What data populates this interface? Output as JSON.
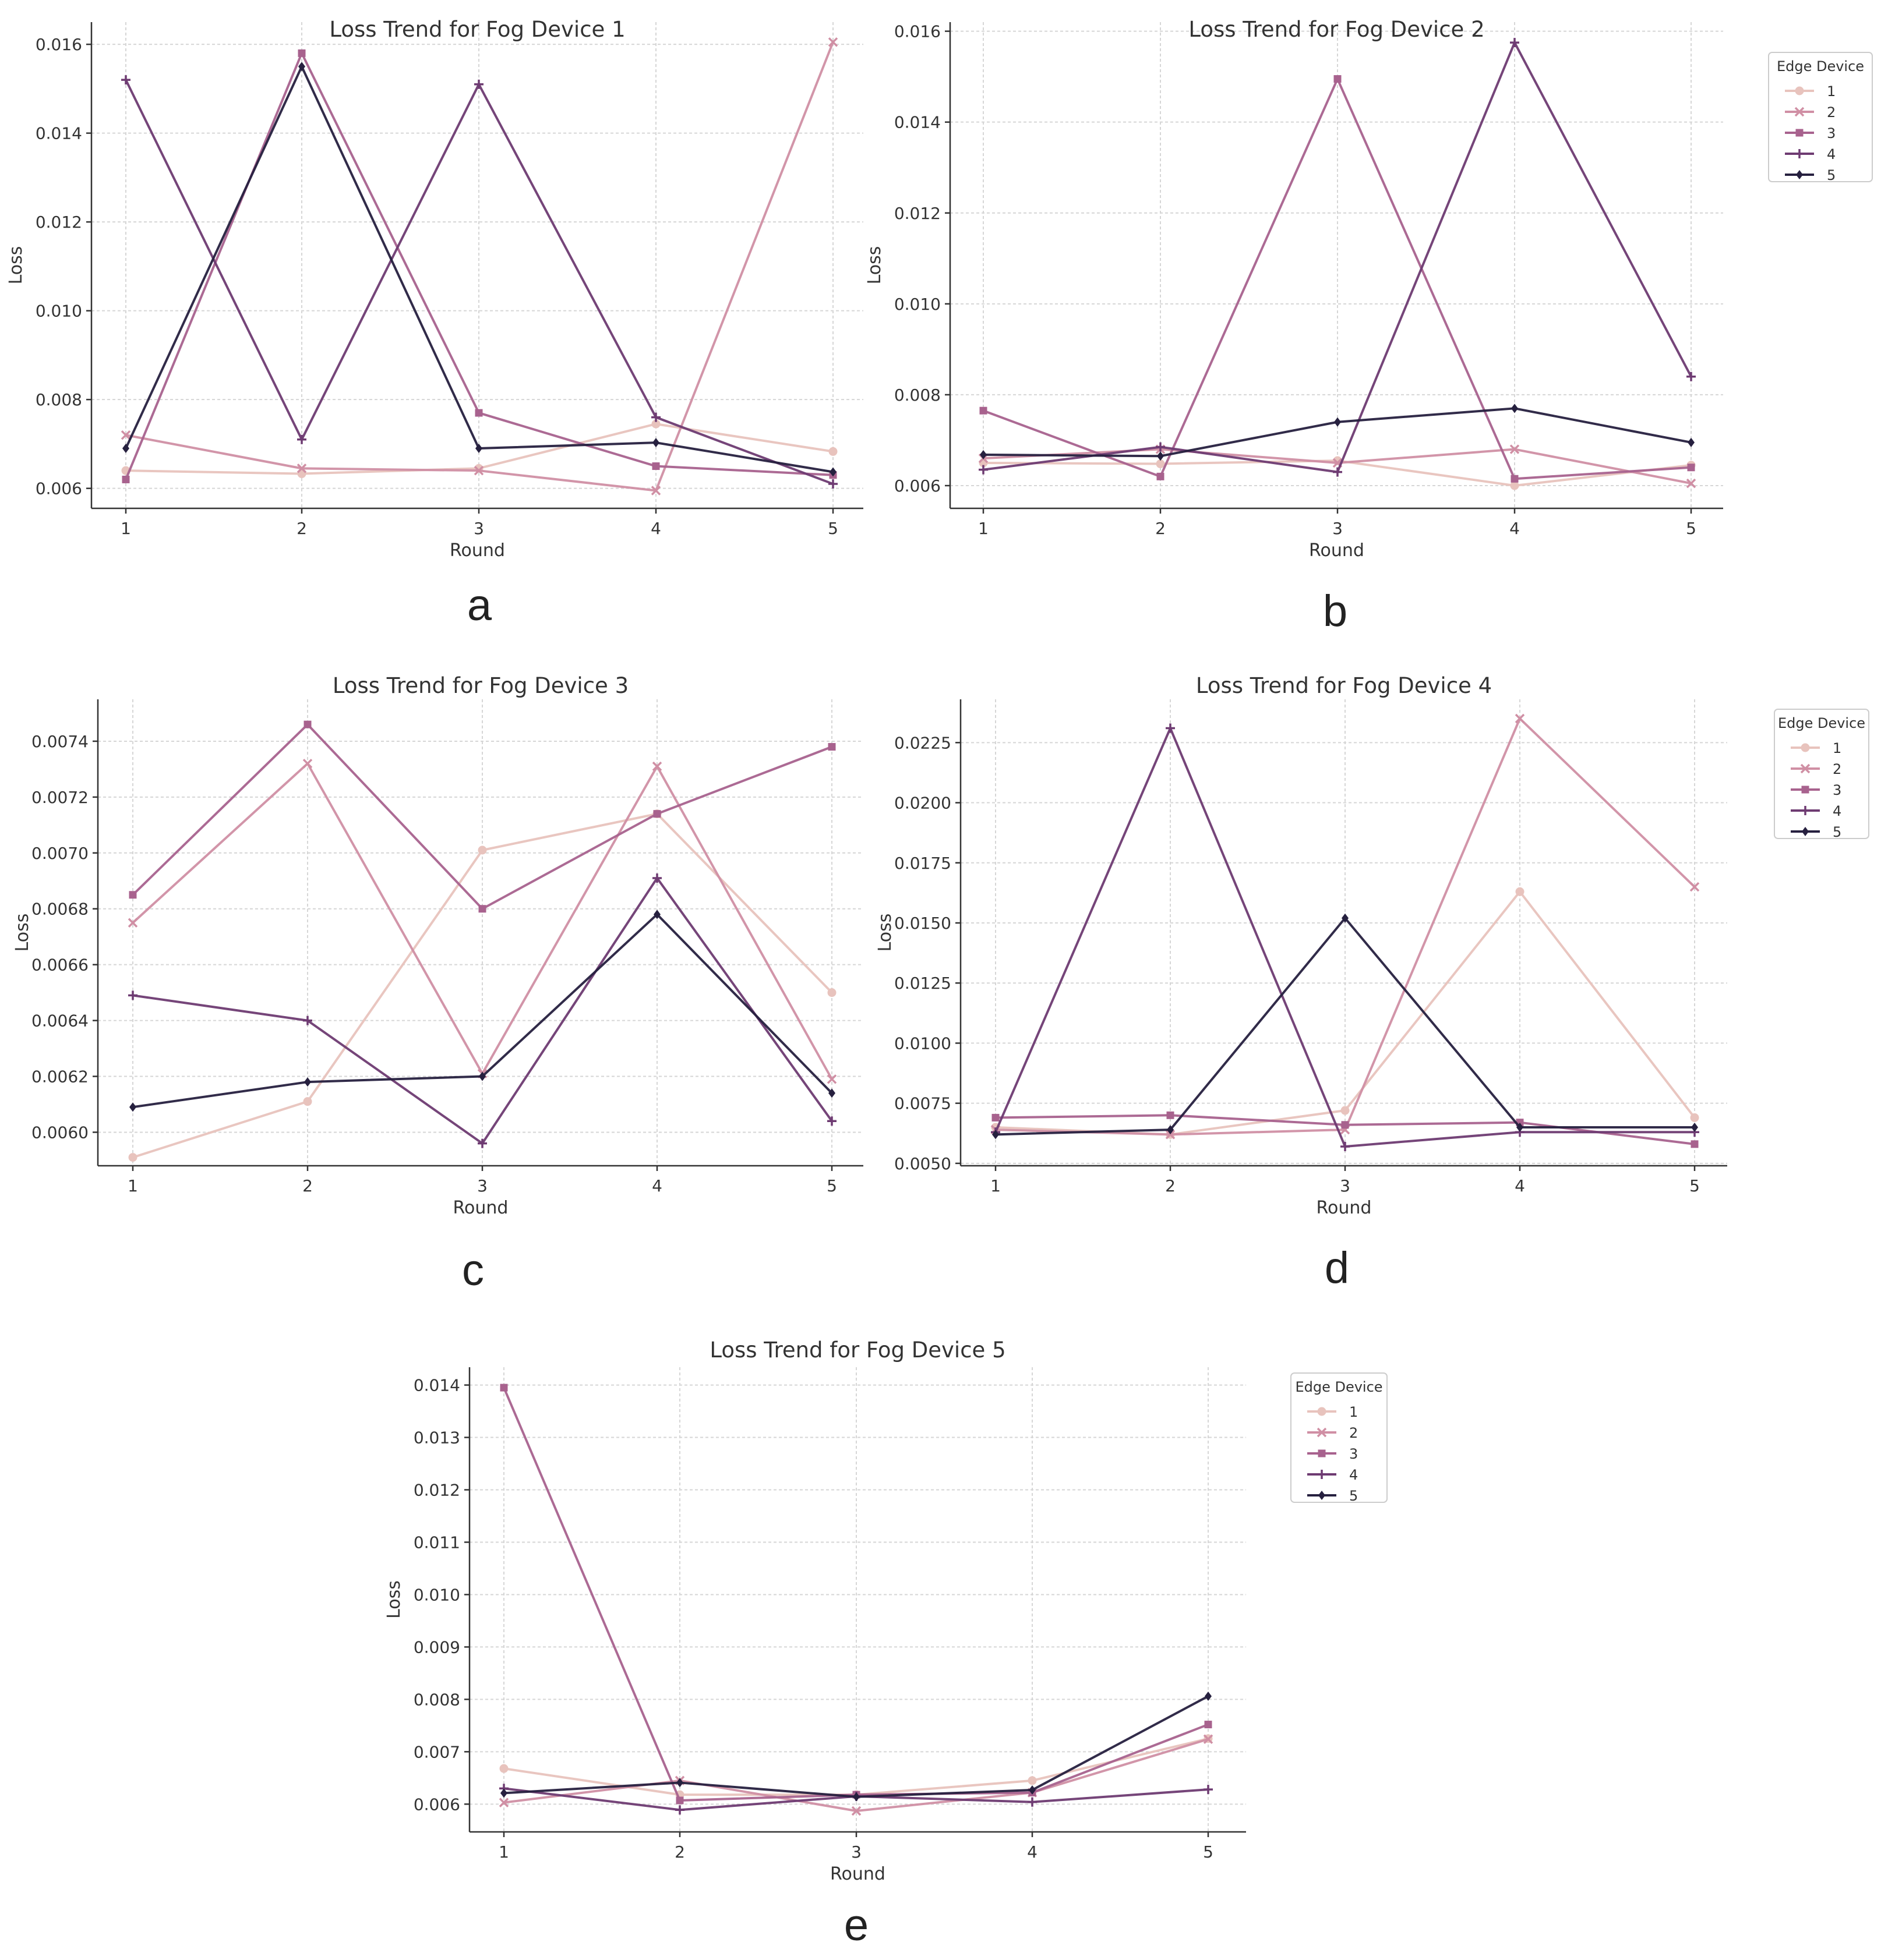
{
  "figure": {
    "captions": [
      "a",
      "b",
      "c",
      "d",
      "e"
    ]
  },
  "palette": {
    "1": "#e8c3bd",
    "2": "#d08fa4",
    "3": "#a8628e",
    "4": "#6e3b72",
    "5": "#26203f"
  },
  "chart_data": [
    {
      "type": "line",
      "title": "Loss Trend for Fog Device 1",
      "xlabel": "Round",
      "ylabel": "Loss",
      "x": [
        1,
        2,
        3,
        4,
        5
      ],
      "ylim": [
        0.00555,
        0.0165
      ],
      "yticks": [
        0.006,
        0.008,
        0.01,
        0.012,
        0.014,
        0.016
      ],
      "ytick_labels": [
        "0.006",
        "0.008",
        "0.010",
        "0.012",
        "0.014",
        "0.016"
      ],
      "grid": true,
      "legend": null,
      "series": [
        {
          "name": "1",
          "values": [
            0.0064,
            0.00633,
            0.00645,
            0.00745,
            0.00683
          ]
        },
        {
          "name": "2",
          "values": [
            0.0072,
            0.00645,
            0.0064,
            0.00595,
            0.01605
          ]
        },
        {
          "name": "3",
          "values": [
            0.0062,
            0.0158,
            0.0077,
            0.0065,
            0.0063
          ]
        },
        {
          "name": "4",
          "values": [
            0.0152,
            0.0071,
            0.0151,
            0.0076,
            0.0061
          ]
        },
        {
          "name": "5",
          "values": [
            0.0069,
            0.0155,
            0.0069,
            0.00703,
            0.00637
          ]
        }
      ]
    },
    {
      "type": "line",
      "title": "Loss Trend for Fog Device 2",
      "xlabel": "Round",
      "ylabel": "Loss",
      "x": [
        1,
        2,
        3,
        4,
        5
      ],
      "ylim": [
        0.0055,
        0.0162
      ],
      "yticks": [
        0.006,
        0.008,
        0.01,
        0.012,
        0.014,
        0.016
      ],
      "ytick_labels": [
        "0.006",
        "0.008",
        "0.010",
        "0.012",
        "0.014",
        "0.016"
      ],
      "grid": true,
      "legend": {
        "title": "Edge Device",
        "entries": [
          "1",
          "2",
          "3",
          "4",
          "5"
        ],
        "placement": "right-top-outside"
      },
      "series": [
        {
          "name": "1",
          "values": [
            0.0065,
            0.00648,
            0.00655,
            0.006,
            0.00645
          ]
        },
        {
          "name": "2",
          "values": [
            0.0066,
            0.0068,
            0.0065,
            0.0068,
            0.00605
          ]
        },
        {
          "name": "3",
          "values": [
            0.00765,
            0.0062,
            0.01495,
            0.00615,
            0.0064
          ]
        },
        {
          "name": "4",
          "values": [
            0.00635,
            0.00685,
            0.0063,
            0.01575,
            0.0084
          ]
        },
        {
          "name": "5",
          "values": [
            0.00668,
            0.00665,
            0.0074,
            0.0077,
            0.00695
          ]
        }
      ]
    },
    {
      "type": "line",
      "title": "Loss Trend for Fog Device 3",
      "xlabel": "Round",
      "ylabel": "Loss",
      "x": [
        1,
        2,
        3,
        4,
        5
      ],
      "ylim": [
        0.00588,
        0.00755
      ],
      "yticks": [
        0.006,
        0.0062,
        0.0064,
        0.0066,
        0.0068,
        0.007,
        0.0072,
        0.0074
      ],
      "ytick_labels": [
        "0.0060",
        "0.0062",
        "0.0064",
        "0.0066",
        "0.0068",
        "0.0070",
        "0.0072",
        "0.0074"
      ],
      "grid": true,
      "legend": null,
      "series": [
        {
          "name": "1",
          "values": [
            0.00591,
            0.00611,
            0.00701,
            0.00714,
            0.0065
          ]
        },
        {
          "name": "2",
          "values": [
            0.00675,
            0.00732,
            0.00621,
            0.00731,
            0.00619
          ]
        },
        {
          "name": "3",
          "values": [
            0.00685,
            0.00746,
            0.0068,
            0.00714,
            0.00738
          ]
        },
        {
          "name": "4",
          "values": [
            0.00649,
            0.0064,
            0.00596,
            0.00691,
            0.00604
          ]
        },
        {
          "name": "5",
          "values": [
            0.00609,
            0.00618,
            0.0062,
            0.00678,
            0.00614
          ]
        }
      ]
    },
    {
      "type": "line",
      "title": "Loss Trend for Fog Device 4",
      "xlabel": "Round",
      "ylabel": "Loss",
      "x": [
        1,
        2,
        3,
        4,
        5
      ],
      "ylim": [
        0.0049,
        0.0243
      ],
      "yticks": [
        0.005,
        0.0075,
        0.01,
        0.0125,
        0.015,
        0.0175,
        0.02,
        0.0225
      ],
      "ytick_labels": [
        "0.0050",
        "0.0075",
        "0.0100",
        "0.0125",
        "0.0150",
        "0.0175",
        "0.0200",
        "0.0225"
      ],
      "grid": true,
      "legend": {
        "title": "Edge Device",
        "entries": [
          "1",
          "2",
          "3",
          "4",
          "5"
        ],
        "placement": "right-top-outside"
      },
      "series": [
        {
          "name": "1",
          "values": [
            0.0065,
            0.0062,
            0.0072,
            0.0163,
            0.0069
          ]
        },
        {
          "name": "2",
          "values": [
            0.0064,
            0.0062,
            0.0064,
            0.0235,
            0.0165
          ]
        },
        {
          "name": "3",
          "values": [
            0.0069,
            0.007,
            0.0066,
            0.0067,
            0.0058
          ]
        },
        {
          "name": "4",
          "values": [
            0.0063,
            0.0231,
            0.0057,
            0.0063,
            0.0063
          ]
        },
        {
          "name": "5",
          "values": [
            0.0062,
            0.0064,
            0.0152,
            0.0065,
            0.0065
          ]
        }
      ]
    },
    {
      "type": "line",
      "title": "Loss Trend for Fog Device 5",
      "xlabel": "Round",
      "ylabel": "Loss",
      "x": [
        1,
        2,
        3,
        4,
        5
      ],
      "ylim": [
        0.00547,
        0.01434
      ],
      "yticks": [
        0.006,
        0.007,
        0.008,
        0.009,
        0.01,
        0.011,
        0.012,
        0.013,
        0.014
      ],
      "ytick_labels": [
        "0.006",
        "0.007",
        "0.008",
        "0.009",
        "0.010",
        "0.011",
        "0.012",
        "0.013",
        "0.014"
      ],
      "grid": true,
      "legend": {
        "title": "Edge Device",
        "entries": [
          "1",
          "2",
          "3",
          "4",
          "5"
        ],
        "placement": "right-top-outside"
      },
      "series": [
        {
          "name": "1",
          "values": [
            0.00668,
            0.00618,
            0.00618,
            0.00645,
            0.00725
          ]
        },
        {
          "name": "2",
          "values": [
            0.00603,
            0.00645,
            0.00587,
            0.00622,
            0.00724
          ]
        },
        {
          "name": "3",
          "values": [
            0.01395,
            0.00607,
            0.00618,
            0.00622,
            0.00752
          ]
        },
        {
          "name": "4",
          "values": [
            0.0063,
            0.00589,
            0.00615,
            0.00604,
            0.00628
          ]
        },
        {
          "name": "5",
          "values": [
            0.00621,
            0.00641,
            0.00614,
            0.00627,
            0.00806
          ]
        }
      ]
    }
  ]
}
